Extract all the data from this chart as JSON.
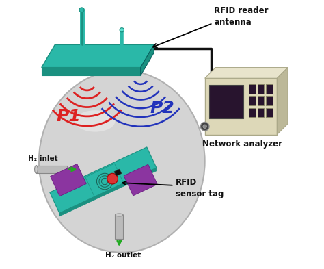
{
  "bg_color": "#ffffff",
  "antenna_top_color": "#2ab8a8",
  "antenna_side_color": "#1a9080",
  "network_box_color": "#ddd8b8",
  "network_box_side": "#bcb898",
  "network_screen_color": "#28142e",
  "sphere_color": "#cccccc",
  "sphere_edge": "#aaaaaa",
  "tag_teal": "#2ab8a8",
  "tag_teal_side": "#1a9080",
  "tag_purple": "#8b35a0",
  "tag_purple_dark": "#6a1a80",
  "red_wave_color": "#dd2222",
  "blue_wave_color": "#2233bb",
  "p1_color": "#dd2222",
  "p2_color": "#2233bb",
  "h2_arrow_color": "#22aa22",
  "pipe_color": "#bbbbbb",
  "pipe_edge": "#888888",
  "label_color": "#111111",
  "cable_color": "#111111",
  "labels": {
    "antenna": "RFID reader\nantenna",
    "network": "Network analyzer",
    "sensor": "RFID\nsensor tag",
    "h2_inlet": "H₂ inlet",
    "h2_outlet": "H₂ outlet",
    "p1": "P1",
    "p2": "P2"
  },
  "figsize": [
    4.74,
    3.93
  ],
  "dpi": 100
}
